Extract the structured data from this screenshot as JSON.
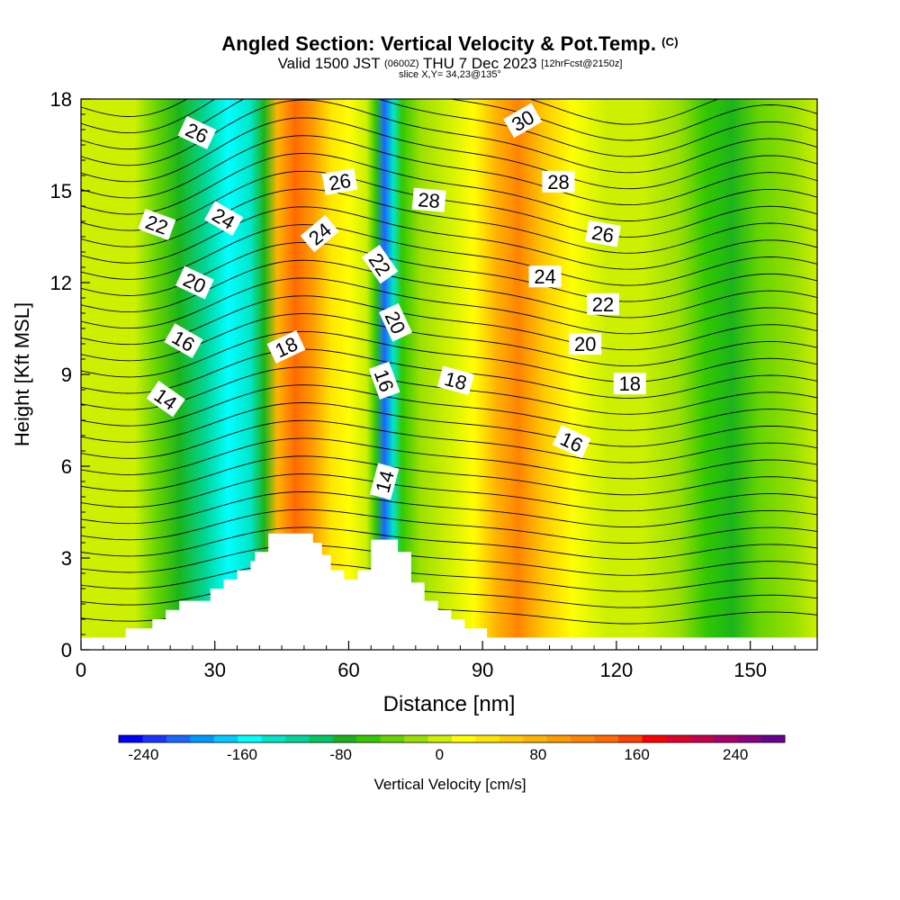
{
  "chart_data": {
    "type": "heatmap",
    "title": "Angled Section: Vertical Velocity & Pot.Temp.",
    "title_mark": "(C)",
    "subtitle_main": "Valid 1500 JST",
    "subtitle_z": "(0600Z)",
    "subtitle_date": "THU 7 Dec 2023",
    "subtitle_fcst": "[12hrFcst@2150z]",
    "subtitle2": "slice X,Y= 34,23@135°",
    "xlabel": "Distance [nm]",
    "ylabel": "Height [Kft MSL]",
    "xlim": [
      0,
      165
    ],
    "ylim": [
      0,
      18
    ],
    "x_ticks": [
      0,
      30,
      60,
      90,
      120,
      150
    ],
    "y_ticks": [
      0,
      3,
      6,
      9,
      12,
      15,
      18
    ],
    "colorbar": {
      "label": "Vertical Velocity [cm/s]",
      "ticks": [
        "-240",
        "-160",
        "-80",
        "0",
        "80",
        "160",
        "240"
      ],
      "tick_values": [
        -240,
        -160,
        -80,
        0,
        80,
        160,
        240
      ],
      "min": -260,
      "max": 280,
      "colors": [
        "#0000ff",
        "#1a33ff",
        "#1a66ff",
        "#0099ff",
        "#00ccff",
        "#00ffff",
        "#00e6c8",
        "#00d699",
        "#00c866",
        "#1ab41a",
        "#33c800",
        "#66d400",
        "#99e000",
        "#ccf000",
        "#ffff00",
        "#ffe600",
        "#ffcc00",
        "#ffb400",
        "#ff9c00",
        "#ff8400",
        "#ff6a00",
        "#ff4000",
        "#ff0000",
        "#e0002a",
        "#c8004a",
        "#a8006a",
        "#8a0080",
        "#6a0090"
      ]
    },
    "velocity_bands": [
      {
        "x": 5,
        "v": 6
      },
      {
        "x": 12,
        "v": 2
      },
      {
        "x": 17,
        "v": -40
      },
      {
        "x": 22,
        "v": -80
      },
      {
        "x": 28,
        "v": -110
      },
      {
        "x": 33,
        "v": -160
      },
      {
        "x": 38,
        "v": -130
      },
      {
        "x": 41,
        "v": -70
      },
      {
        "x": 44,
        "v": 80
      },
      {
        "x": 48,
        "v": 130
      },
      {
        "x": 52,
        "v": 90
      },
      {
        "x": 56,
        "v": 40
      },
      {
        "x": 60,
        "v": 25
      },
      {
        "x": 64,
        "v": 0
      },
      {
        "x": 66,
        "v": -60
      },
      {
        "x": 68,
        "v": -210
      },
      {
        "x": 70,
        "v": -140
      },
      {
        "x": 72,
        "v": -60
      },
      {
        "x": 76,
        "v": -20
      },
      {
        "x": 82,
        "v": -5
      },
      {
        "x": 88,
        "v": 10
      },
      {
        "x": 93,
        "v": 70
      },
      {
        "x": 98,
        "v": 120
      },
      {
        "x": 104,
        "v": 60
      },
      {
        "x": 110,
        "v": 20
      },
      {
        "x": 118,
        "v": 5
      },
      {
        "x": 126,
        "v": -5
      },
      {
        "x": 134,
        "v": -20
      },
      {
        "x": 140,
        "v": -50
      },
      {
        "x": 146,
        "v": -70
      },
      {
        "x": 152,
        "v": -40
      },
      {
        "x": 160,
        "v": -10
      },
      {
        "x": 165,
        "v": 0
      }
    ],
    "terrain": [
      [
        0,
        0.4
      ],
      [
        10,
        0.4
      ],
      [
        10,
        0.7
      ],
      [
        16,
        0.7
      ],
      [
        16,
        1.0
      ],
      [
        19,
        1.0
      ],
      [
        19,
        1.3
      ],
      [
        22,
        1.3
      ],
      [
        22,
        1.6
      ],
      [
        29,
        1.6
      ],
      [
        29,
        2.0
      ],
      [
        32,
        2.0
      ],
      [
        32,
        2.3
      ],
      [
        35,
        2.3
      ],
      [
        35,
        2.6
      ],
      [
        38,
        2.6
      ],
      [
        38,
        2.9
      ],
      [
        39,
        2.9
      ],
      [
        39,
        3.2
      ],
      [
        42,
        3.2
      ],
      [
        42,
        3.8
      ],
      [
        52,
        3.8
      ],
      [
        52,
        3.5
      ],
      [
        54,
        3.5
      ],
      [
        54,
        3.1
      ],
      [
        56,
        3.1
      ],
      [
        56,
        2.6
      ],
      [
        59,
        2.6
      ],
      [
        59,
        2.3
      ],
      [
        62,
        2.3
      ],
      [
        62,
        2.6
      ],
      [
        65,
        2.6
      ],
      [
        65,
        3.6
      ],
      [
        71,
        3.6
      ],
      [
        71,
        3.2
      ],
      [
        74,
        3.2
      ],
      [
        74,
        2.2
      ],
      [
        77,
        2.2
      ],
      [
        77,
        1.6
      ],
      [
        80,
        1.6
      ],
      [
        80,
        1.3
      ],
      [
        83,
        1.3
      ],
      [
        83,
        1.0
      ],
      [
        86,
        1.0
      ],
      [
        86,
        0.7
      ],
      [
        91,
        0.7
      ],
      [
        91,
        0.4
      ],
      [
        165,
        0.4
      ]
    ],
    "theta_labels": [
      {
        "text": "26",
        "x": 26,
        "y": 16.9,
        "rot": 25
      },
      {
        "text": "24",
        "x": 32,
        "y": 14.1,
        "rot": 30
      },
      {
        "text": "22",
        "x": 17,
        "y": 13.9,
        "rot": 20
      },
      {
        "text": "20",
        "x": 25.5,
        "y": 12.0,
        "rot": 25
      },
      {
        "text": "16",
        "x": 23,
        "y": 10.1,
        "rot": 30
      },
      {
        "text": "14",
        "x": 19,
        "y": 8.2,
        "rot": 35
      },
      {
        "text": "26",
        "x": 58,
        "y": 15.3,
        "rot": -10
      },
      {
        "text": "24",
        "x": 53.5,
        "y": 13.6,
        "rot": -40
      },
      {
        "text": "18",
        "x": 46,
        "y": 9.9,
        "rot": -25
      },
      {
        "text": "22",
        "x": 67,
        "y": 12.6,
        "rot": 55
      },
      {
        "text": "20",
        "x": 70.5,
        "y": 10.7,
        "rot": 65
      },
      {
        "text": "16",
        "x": 68,
        "y": 8.8,
        "rot": 70
      },
      {
        "text": "14",
        "x": 68,
        "y": 5.5,
        "rot": -75
      },
      {
        "text": "28",
        "x": 78,
        "y": 14.7,
        "rot": 5
      },
      {
        "text": "18",
        "x": 84,
        "y": 8.8,
        "rot": 15
      },
      {
        "text": "30",
        "x": 99,
        "y": 17.3,
        "rot": -30
      },
      {
        "text": "28",
        "x": 107,
        "y": 15.3,
        "rot": 0
      },
      {
        "text": "24",
        "x": 104,
        "y": 12.2,
        "rot": 0
      },
      {
        "text": "26",
        "x": 117,
        "y": 13.6,
        "rot": 10
      },
      {
        "text": "22",
        "x": 117,
        "y": 11.3,
        "rot": 0
      },
      {
        "text": "20",
        "x": 113,
        "y": 10.0,
        "rot": 0
      },
      {
        "text": "18",
        "x": 123,
        "y": 8.7,
        "rot": 0
      },
      {
        "text": "16",
        "x": 110,
        "y": 6.8,
        "rot": 25
      }
    ],
    "grid": false
  }
}
